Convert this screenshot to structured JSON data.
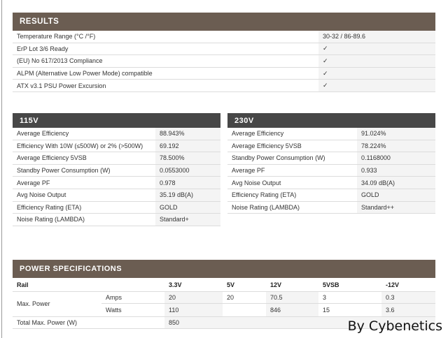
{
  "results": {
    "title": "RESULTS",
    "rows": [
      {
        "label": "Temperature Range (°C /°F)",
        "value": "30-32 / 86-89.6"
      },
      {
        "label": "ErP Lot 3/6 Ready",
        "value": "✓"
      },
      {
        "label": "(EU) No 617/2013 Compliance",
        "value": "✓"
      },
      {
        "label": "ALPM (Alternative Low Power Mode) compatible",
        "value": "✓"
      },
      {
        "label": "ATX v3.1 PSU Power Excursion",
        "value": "✓"
      }
    ]
  },
  "v115": {
    "title": "115V",
    "rows": [
      {
        "label": "Average Efficiency",
        "value": "88.943%"
      },
      {
        "label": "Efficiency With 10W (≤500W) or 2% (>500W)",
        "value": "69.192"
      },
      {
        "label": "Average Efficiency 5VSB",
        "value": "78.500%"
      },
      {
        "label": "Standby Power Consumption (W)",
        "value": "0.0553000"
      },
      {
        "label": "Average PF",
        "value": "0.978"
      },
      {
        "label": "Avg Noise Output",
        "value": "35.19 dB(A)"
      },
      {
        "label": "Efficiency Rating (ETA)",
        "value": "GOLD"
      },
      {
        "label": "Noise Rating (LAMBDA)",
        "value": "Standard+"
      }
    ]
  },
  "v230": {
    "title": "230V",
    "rows": [
      {
        "label": "Average Efficiency",
        "value": "91.024%"
      },
      {
        "label": "Average Efficiency 5VSB",
        "value": "78.224%"
      },
      {
        "label": "Standby Power Consumption (W)",
        "value": "0.1168000"
      },
      {
        "label": "Average PF",
        "value": "0.933"
      },
      {
        "label": "Avg Noise Output",
        "value": "34.09 dB(A)"
      },
      {
        "label": "Efficiency Rating (ETA)",
        "value": "GOLD"
      },
      {
        "label": "Noise Rating (LAMBDA)",
        "value": "Standard++"
      }
    ]
  },
  "power": {
    "title": "POWER SPECIFICATIONS",
    "rail_label": "Rail",
    "rails": [
      "3.3V",
      "5V",
      "12V",
      "5VSB",
      "-12V"
    ],
    "max_power_label": "Max. Power",
    "amps_label": "Amps",
    "amps": [
      "20",
      "20",
      "70.5",
      "3",
      "0.3"
    ],
    "watts_label": "Watts",
    "watts": [
      "110",
      "",
      "846",
      "15",
      "3.6"
    ],
    "total_label": "Total Max. Power (W)",
    "total": "850"
  },
  "credit": "By Cybenetics"
}
